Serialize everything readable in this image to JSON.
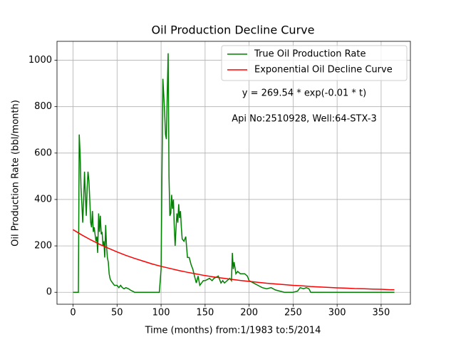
{
  "chart_data": {
    "type": "line",
    "title": "Oil Production Decline Curve",
    "x_label": "Time (months) from:1/1983 to:5/2014",
    "y_label": "Oil Production Rate (bbl/month)",
    "annotations": [
      "y = 269.54 * exp(-0.01 * t)",
      "Api No:2510928, Well:64-STX-3"
    ],
    "xlim": [
      -18.25,
      383.25
    ],
    "ylim": [
      -51.5,
      1081.5
    ],
    "xticks": [
      0,
      50,
      100,
      150,
      200,
      250,
      300,
      350
    ],
    "yticks": [
      0,
      200,
      400,
      600,
      800,
      1000
    ],
    "grid": true,
    "legend": "upper right",
    "series": [
      {
        "name": "True Oil Production Rate",
        "color": "#008000",
        "x": [
          0,
          5,
          6,
          7,
          8,
          9,
          10,
          11,
          12,
          13,
          14,
          15,
          16,
          17,
          18,
          19,
          20,
          21,
          22,
          23,
          24,
          25,
          26,
          27,
          28,
          29,
          30,
          31,
          32,
          33,
          34,
          35,
          36,
          37,
          38,
          39,
          40,
          41,
          42,
          43,
          45,
          47,
          50,
          52,
          54,
          56,
          58,
          60,
          63,
          65,
          70,
          80,
          90,
          98,
          100,
          101,
          102,
          103,
          104,
          105,
          106,
          107,
          108,
          109,
          110,
          111,
          112,
          113,
          114,
          115,
          116,
          117,
          118,
          119,
          120,
          121,
          122,
          123,
          124,
          126,
          128,
          130,
          132,
          134,
          136,
          138,
          140,
          142,
          144,
          146,
          148,
          150,
          155,
          158,
          160,
          165,
          168,
          170,
          172,
          175,
          178,
          180,
          181,
          182,
          183,
          185,
          187,
          190,
          195,
          198,
          200,
          205,
          210,
          215,
          220,
          225,
          230,
          235,
          240,
          250,
          255,
          258,
          262,
          265,
          268,
          270,
          280,
          300,
          330,
          365
        ],
        "values": [
          0,
          0,
          0,
          680,
          600,
          450,
          380,
          300,
          400,
          520,
          420,
          330,
          450,
          520,
          480,
          400,
          300,
          280,
          350,
          260,
          280,
          250,
          220,
          240,
          170,
          340,
          260,
          330,
          250,
          260,
          200,
          220,
          150,
          290,
          200,
          150,
          130,
          80,
          60,
          50,
          40,
          30,
          30,
          20,
          30,
          20,
          15,
          20,
          15,
          10,
          0,
          0,
          0,
          0,
          100,
          500,
          920,
          850,
          780,
          680,
          660,
          850,
          1030,
          500,
          330,
          340,
          420,
          360,
          400,
          280,
          200,
          280,
          340,
          300,
          380,
          320,
          350,
          280,
          230,
          220,
          240,
          150,
          150,
          120,
          100,
          70,
          40,
          70,
          30,
          40,
          50,
          50,
          60,
          50,
          60,
          70,
          40,
          50,
          40,
          50,
          60,
          50,
          170,
          100,
          130,
          80,
          90,
          80,
          80,
          70,
          50,
          40,
          30,
          20,
          15,
          20,
          10,
          5,
          0,
          0,
          5,
          20,
          15,
          20,
          15,
          0,
          0,
          0,
          0,
          0
        ]
      },
      {
        "name": "Exponential Oil Decline Curve",
        "color": "#ff0000",
        "x": [
          0,
          10,
          20,
          30,
          40,
          50,
          60,
          70,
          80,
          90,
          100,
          110,
          120,
          130,
          140,
          150,
          160,
          170,
          180,
          190,
          200,
          210,
          220,
          230,
          240,
          250,
          260,
          270,
          280,
          290,
          300,
          310,
          320,
          330,
          340,
          350,
          360,
          365
        ],
        "values": [
          270,
          247,
          226,
          207,
          190,
          174,
          159,
          146,
          134,
          122,
          112,
          103,
          94,
          86,
          79,
          72,
          66,
          61,
          56,
          51,
          47,
          43,
          39,
          36,
          33,
          30,
          28,
          25,
          23,
          21,
          19,
          18,
          16,
          15,
          14,
          13,
          11,
          11
        ]
      }
    ]
  }
}
